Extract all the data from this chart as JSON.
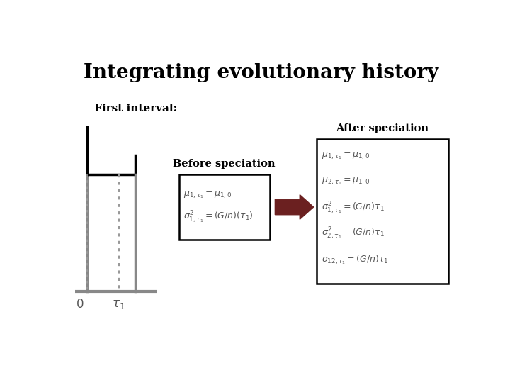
{
  "title": "Integrating evolutionary history",
  "first_interval_label": "First interval:",
  "before_speciation_label": "Before speciation",
  "after_speciation_label": "After speciation",
  "background_color": "#ffffff",
  "title_fontsize": 20,
  "label_fontsize": 11,
  "before_equations": [
    "$\\mu_{1,\\tau_1} = \\mu_{1,0}$",
    "$\\sigma^2_{1,\\tau_1} = (G/n)(\\tau_1)$"
  ],
  "after_equations": [
    "$\\mu_{1,\\tau_1} = \\mu_{1,0}$",
    "$\\mu_{2,\\tau_1} = \\mu_{1,0}$",
    "$\\sigma^2_{1,\\tau_1} = (G/n)\\tau_1$",
    "$\\sigma^2_{2,\\tau_1} = (G/n)\\tau_1$",
    "$\\sigma_{12,\\tau_1} = (G/n)\\tau_1$"
  ],
  "arrow_color": "#6b2020",
  "box_edge_color": "#000000",
  "tree_line_black": "#000000",
  "tree_line_gray": "#888888",
  "tree_dotted_color": "#999999"
}
